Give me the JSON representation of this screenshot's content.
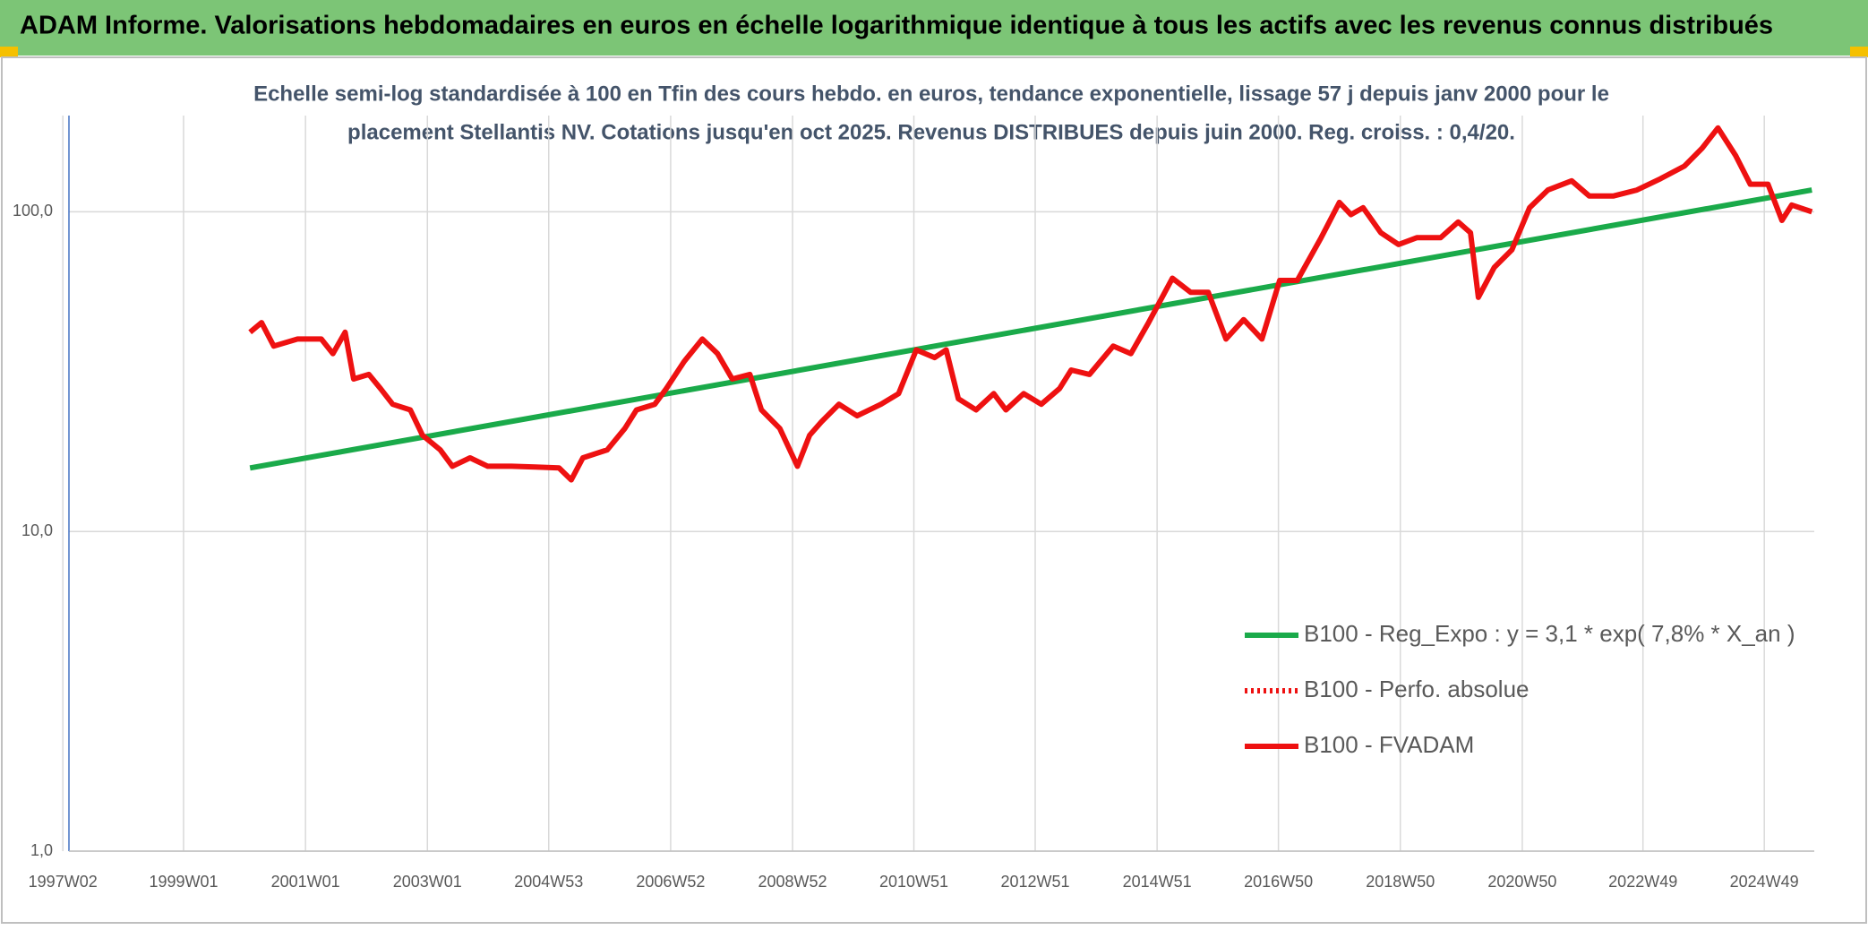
{
  "chart_data": {
    "type": "line",
    "title": "ADAM Informe. Valorisations hebdomadaires en euros en échelle logarithmique identique à tous les actifs avec les revenus connus distribués",
    "subtitle": [
      "Echelle semi-log standardisée à 100 en Tfin des cours hebdo. en euros, tendance exponentielle, lissage 57 j depuis janv 2000 pour le",
      "placement Stellantis NV. Cotations jusqu'en oct 2025. Revenus DISTRIBUES depuis juin 2000. Reg. croiss. : 0,4/20."
    ],
    "yscale": "log",
    "ylim": [
      1,
      200
    ],
    "yticks": [
      {
        "value": 1,
        "label": "1,0"
      },
      {
        "value": 10,
        "label": "10,0"
      },
      {
        "value": 100,
        "label": "100,0"
      }
    ],
    "xlim": [
      1997.12,
      2025.75
    ],
    "xticks": [
      {
        "value": 1997.02,
        "label": "1997W02"
      },
      {
        "value": 1999.0,
        "label": "1999W01"
      },
      {
        "value": 2001.0,
        "label": "2001W01"
      },
      {
        "value": 2003.0,
        "label": "2003W01"
      },
      {
        "value": 2004.99,
        "label": "2004W53"
      },
      {
        "value": 2006.99,
        "label": "2006W52"
      },
      {
        "value": 2008.99,
        "label": "2008W52"
      },
      {
        "value": 2010.98,
        "label": "2010W51"
      },
      {
        "value": 2012.97,
        "label": "2012W51"
      },
      {
        "value": 2014.97,
        "label": "2014W51"
      },
      {
        "value": 2016.96,
        "label": "2016W50"
      },
      {
        "value": 2018.96,
        "label": "2018W50"
      },
      {
        "value": 2020.96,
        "label": "2020W50"
      },
      {
        "value": 2022.94,
        "label": "2022W49"
      },
      {
        "value": 2024.93,
        "label": "2024W49"
      }
    ],
    "grid": true,
    "legend": "bottom-right",
    "series": [
      {
        "name": "B100 - Reg_Expo : y = 3,1 * exp( 7,8% *  X_an )",
        "color": "#1aaa4a",
        "dash": "solid",
        "x": [
          2000.09,
          2025.71
        ],
        "values": [
          15.8,
          117
        ]
      },
      {
        "name": "B100 - Perfo. absolue",
        "color": "#ee1111",
        "dash": "dotted",
        "x": [],
        "values": []
      },
      {
        "name": "B100 - FVADAM",
        "color": "#ee1111",
        "dash": "solid",
        "x": [
          2000.09,
          2000.28,
          2000.48,
          2000.87,
          2001.26,
          2001.45,
          2001.65,
          2001.79,
          2002.04,
          2002.23,
          2002.43,
          2002.72,
          2002.92,
          2003.21,
          2003.41,
          2003.7,
          2003.99,
          2004.38,
          2004.77,
          2005.16,
          2005.36,
          2005.55,
          2005.95,
          2006.24,
          2006.43,
          2006.73,
          2006.92,
          2007.21,
          2007.51,
          2007.76,
          2008.0,
          2008.29,
          2008.48,
          2008.78,
          2009.07,
          2009.27,
          2009.46,
          2009.75,
          2010.05,
          2010.44,
          2010.73,
          2011.02,
          2011.32,
          2011.51,
          2011.71,
          2012.0,
          2012.29,
          2012.49,
          2012.78,
          2013.07,
          2013.37,
          2013.56,
          2013.86,
          2014.25,
          2014.54,
          2014.83,
          2015.22,
          2015.52,
          2015.81,
          2016.1,
          2016.39,
          2016.69,
          2016.98,
          2017.27,
          2017.66,
          2017.96,
          2018.15,
          2018.35,
          2018.64,
          2018.93,
          2019.23,
          2019.62,
          2019.91,
          2020.11,
          2020.24,
          2020.5,
          2020.79,
          2021.08,
          2021.38,
          2021.77,
          2022.06,
          2022.45,
          2022.84,
          2023.23,
          2023.62,
          2023.91,
          2024.17,
          2024.46,
          2024.7,
          2024.99,
          2025.22,
          2025.38,
          2025.71
        ],
        "values": [
          42,
          45,
          38,
          40,
          40,
          36,
          42,
          30,
          31,
          28,
          25,
          24,
          20,
          18,
          16,
          17,
          16,
          16,
          15.9,
          15.8,
          14.5,
          17,
          18,
          21,
          24,
          25,
          28,
          34,
          40,
          36,
          30,
          31,
          24,
          21,
          16,
          20,
          22,
          25,
          23,
          25,
          27,
          37,
          35,
          37,
          26,
          24,
          27,
          24,
          27,
          25,
          28,
          32,
          31,
          38,
          36,
          45,
          62,
          56,
          56,
          40,
          46,
          40,
          61,
          61,
          83,
          107,
          98,
          103,
          86,
          79,
          83,
          83,
          93,
          86,
          54,
          67,
          76,
          103,
          117,
          125,
          112,
          112,
          117,
          127,
          139,
          158,
          183,
          150,
          122,
          122,
          94,
          105,
          100
        ]
      }
    ]
  }
}
